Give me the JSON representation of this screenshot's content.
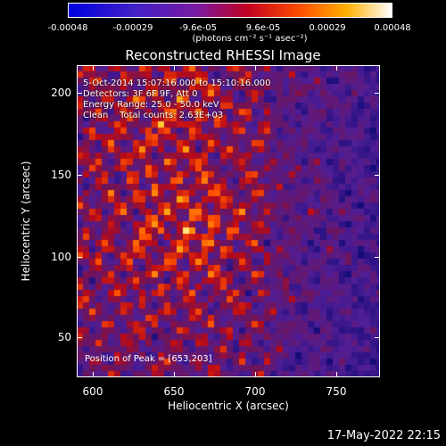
{
  "colorbar": {
    "ticks": [
      "-0.00048",
      "-0.00029",
      "-9.6e-05",
      "9.6e-05",
      "0.00029",
      "0.00048"
    ],
    "unit_label": "(photons cm⁻² s⁻¹ asec⁻²)"
  },
  "title": "Reconstructed RHESSI Image",
  "info": {
    "time_range": "5-Oct-2014 15:07:16.000 to 15:10:16.000",
    "detectors": "Detectors: 3F 6F 9F, Att 0",
    "energy": "Energy Range: 25.0 - 50.0 keV",
    "clean": "Clean    Total counts: 2.63E+03"
  },
  "peak_label": "Position of Peak = [653,203]",
  "axes": {
    "xlabel": "Heliocentric X (arcsec)",
    "ylabel": "Heliocentric Y (arcsec)",
    "xticks": [
      "600",
      "650",
      "700",
      "750"
    ],
    "yticks": [
      "50",
      "100",
      "150",
      "200"
    ]
  },
  "timestamp": "17-May-2022 22:15",
  "colors": {
    "low": "#0000ff",
    "mid": "#5a2aa0",
    "high": "#ffff80",
    "background": "#000000"
  }
}
